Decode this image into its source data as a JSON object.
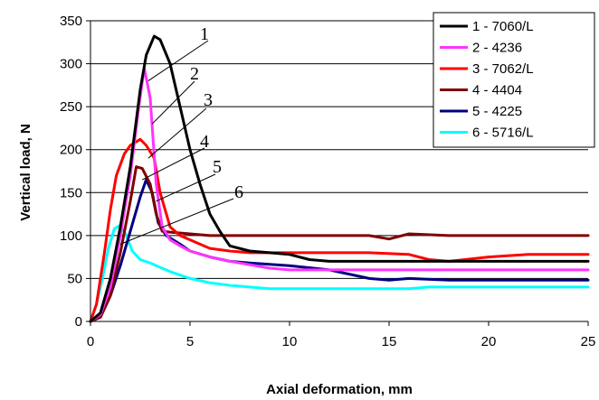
{
  "chart_data": {
    "type": "line",
    "title": "",
    "xlabel": "Axial deformation, mm",
    "ylabel": "Vertical load, N",
    "xlim": [
      0,
      25
    ],
    "ylim": [
      0,
      350
    ],
    "xticks": [
      0,
      5,
      10,
      15,
      20,
      25
    ],
    "yticks": [
      0,
      50,
      100,
      150,
      200,
      250,
      300,
      350
    ],
    "grid": "horizontal",
    "legend_position": "top-right",
    "series": [
      {
        "name": "1 - 7060/L",
        "color": "#000000",
        "callout": "1",
        "x": [
          0,
          0.5,
          1,
          1.5,
          2,
          2.5,
          2.8,
          3.2,
          3.5,
          4,
          4.5,
          5,
          5.5,
          6,
          6.5,
          7,
          8,
          10,
          11,
          12,
          13,
          14,
          16,
          18,
          20,
          22,
          25
        ],
        "y": [
          0,
          10,
          50,
          110,
          180,
          270,
          310,
          332,
          328,
          300,
          250,
          200,
          160,
          125,
          105,
          88,
          82,
          78,
          72,
          70,
          70,
          70,
          70,
          70,
          70,
          70,
          70
        ]
      },
      {
        "name": "2 - 4236",
        "color": "#ff33ff",
        "callout": "2",
        "x": [
          0,
          0.5,
          1,
          1.5,
          2,
          2.4,
          2.7,
          3,
          3.3,
          3.6,
          4,
          4.5,
          5,
          6,
          7,
          8,
          9,
          10,
          12,
          14,
          16,
          18,
          20,
          22,
          25
        ],
        "y": [
          0,
          8,
          40,
          100,
          170,
          245,
          295,
          260,
          160,
          110,
          95,
          88,
          82,
          75,
          70,
          66,
          62,
          60,
          60,
          60,
          60,
          60,
          60,
          60,
          60
        ]
      },
      {
        "name": "3 - 7062/L",
        "color": "#ff0000",
        "callout": "3",
        "x": [
          0,
          0.3,
          0.7,
          1,
          1.3,
          1.7,
          2,
          2.5,
          2.8,
          3.2,
          3.5,
          4,
          4.5,
          5,
          6,
          7,
          8,
          10,
          12,
          14,
          16,
          17,
          18,
          20,
          22,
          24,
          25
        ],
        "y": [
          0,
          20,
          80,
          130,
          170,
          195,
          205,
          212,
          205,
          190,
          150,
          110,
          100,
          95,
          85,
          82,
          80,
          80,
          80,
          80,
          78,
          72,
          70,
          75,
          78,
          78,
          78
        ]
      },
      {
        "name": "4 - 4404",
        "color": "#800000",
        "callout": "4",
        "x": [
          0,
          0.5,
          1,
          1.5,
          2,
          2.3,
          2.6,
          3,
          3.3,
          3.6,
          4,
          5,
          6,
          7,
          8,
          10,
          12,
          14,
          15,
          16,
          18,
          20,
          22,
          25
        ],
        "y": [
          0,
          5,
          30,
          80,
          140,
          180,
          178,
          160,
          125,
          105,
          104,
          102,
          100,
          100,
          100,
          100,
          100,
          100,
          96,
          102,
          100,
          100,
          100,
          100
        ]
      },
      {
        "name": "5 - 4225",
        "color": "#000080",
        "callout": "5",
        "x": [
          0,
          0.5,
          1,
          1.5,
          2,
          2.5,
          2.8,
          3.1,
          3.4,
          3.8,
          4.5,
          5,
          6,
          7,
          8,
          10,
          12,
          14,
          15,
          16,
          18,
          20,
          22,
          25
        ],
        "y": [
          0,
          5,
          30,
          65,
          105,
          145,
          165,
          150,
          115,
          100,
          90,
          82,
          75,
          70,
          68,
          65,
          60,
          50,
          48,
          50,
          48,
          48,
          48,
          48
        ]
      },
      {
        "name": "6 - 5716/L",
        "color": "#00ffff",
        "callout": "6",
        "x": [
          0,
          0.3,
          0.6,
          0.9,
          1.2,
          1.5,
          1.8,
          2.1,
          2.5,
          3,
          3.5,
          4,
          5,
          6,
          7,
          9,
          10,
          12,
          14,
          16,
          17,
          20,
          22,
          25
        ],
        "y": [
          0,
          20,
          50,
          85,
          108,
          112,
          100,
          82,
          72,
          68,
          63,
          58,
          50,
          45,
          42,
          38,
          38,
          38,
          38,
          38,
          40,
          40,
          40,
          40
        ]
      }
    ]
  }
}
